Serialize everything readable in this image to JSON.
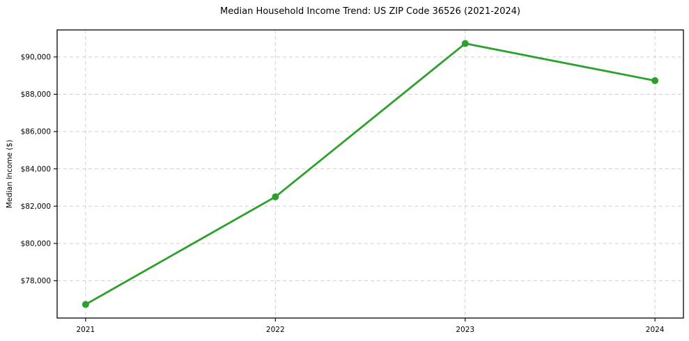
{
  "chart_data": {
    "type": "line",
    "title": "Median Household Income Trend: US ZIP Code 36526 (2021-2024)",
    "xlabel": "",
    "ylabel": "Median Income ($)",
    "categories": [
      "2021",
      "2022",
      "2023",
      "2024"
    ],
    "x": [
      2021,
      2022,
      2023,
      2024
    ],
    "series": [
      {
        "name": "Median Household Income",
        "values": [
          76730,
          82500,
          90720,
          88730
        ]
      }
    ],
    "ytick_values": [
      78000,
      80000,
      82000,
      84000,
      86000,
      88000,
      90000
    ],
    "ytick_labels": [
      "$78,000",
      "$80,000",
      "$82,000",
      "$84,000",
      "$86,000",
      "$88,000",
      "$90,000"
    ],
    "xlim": [
      2020.85,
      2024.15
    ],
    "ylim": [
      76000,
      91450
    ],
    "grid": true,
    "legend_position": "none",
    "line_color": "#2ca02c",
    "marker": "circle",
    "marker_radius": 5,
    "background_color": "#ffffff"
  }
}
